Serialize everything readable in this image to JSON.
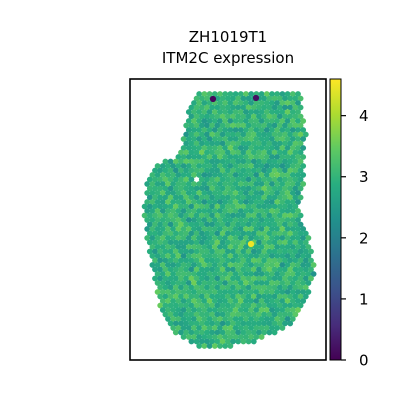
{
  "chart_data": {
    "type": "scatter",
    "title": "ZH1019T1",
    "subtitle": "ITM2C expression",
    "xlabel": "",
    "ylabel": "",
    "grid": false,
    "colormap": "viridis",
    "colorbar": {
      "min": 0,
      "max": 4.6,
      "ticks": [
        0,
        1,
        2,
        3,
        4
      ],
      "tick_labels": [
        "0",
        "1",
        "2",
        "3",
        "4"
      ]
    },
    "value_distribution": {
      "typical_min": 2.3,
      "typical_max": 3.6
    },
    "notable_spots": [
      {
        "label": "low",
        "value": 0.1
      },
      {
        "label": "low",
        "value": 0.2
      },
      {
        "label": "high",
        "value": 4.5
      }
    ],
    "colors": {
      "frame": "#000000",
      "background": "#ffffff"
    }
  }
}
